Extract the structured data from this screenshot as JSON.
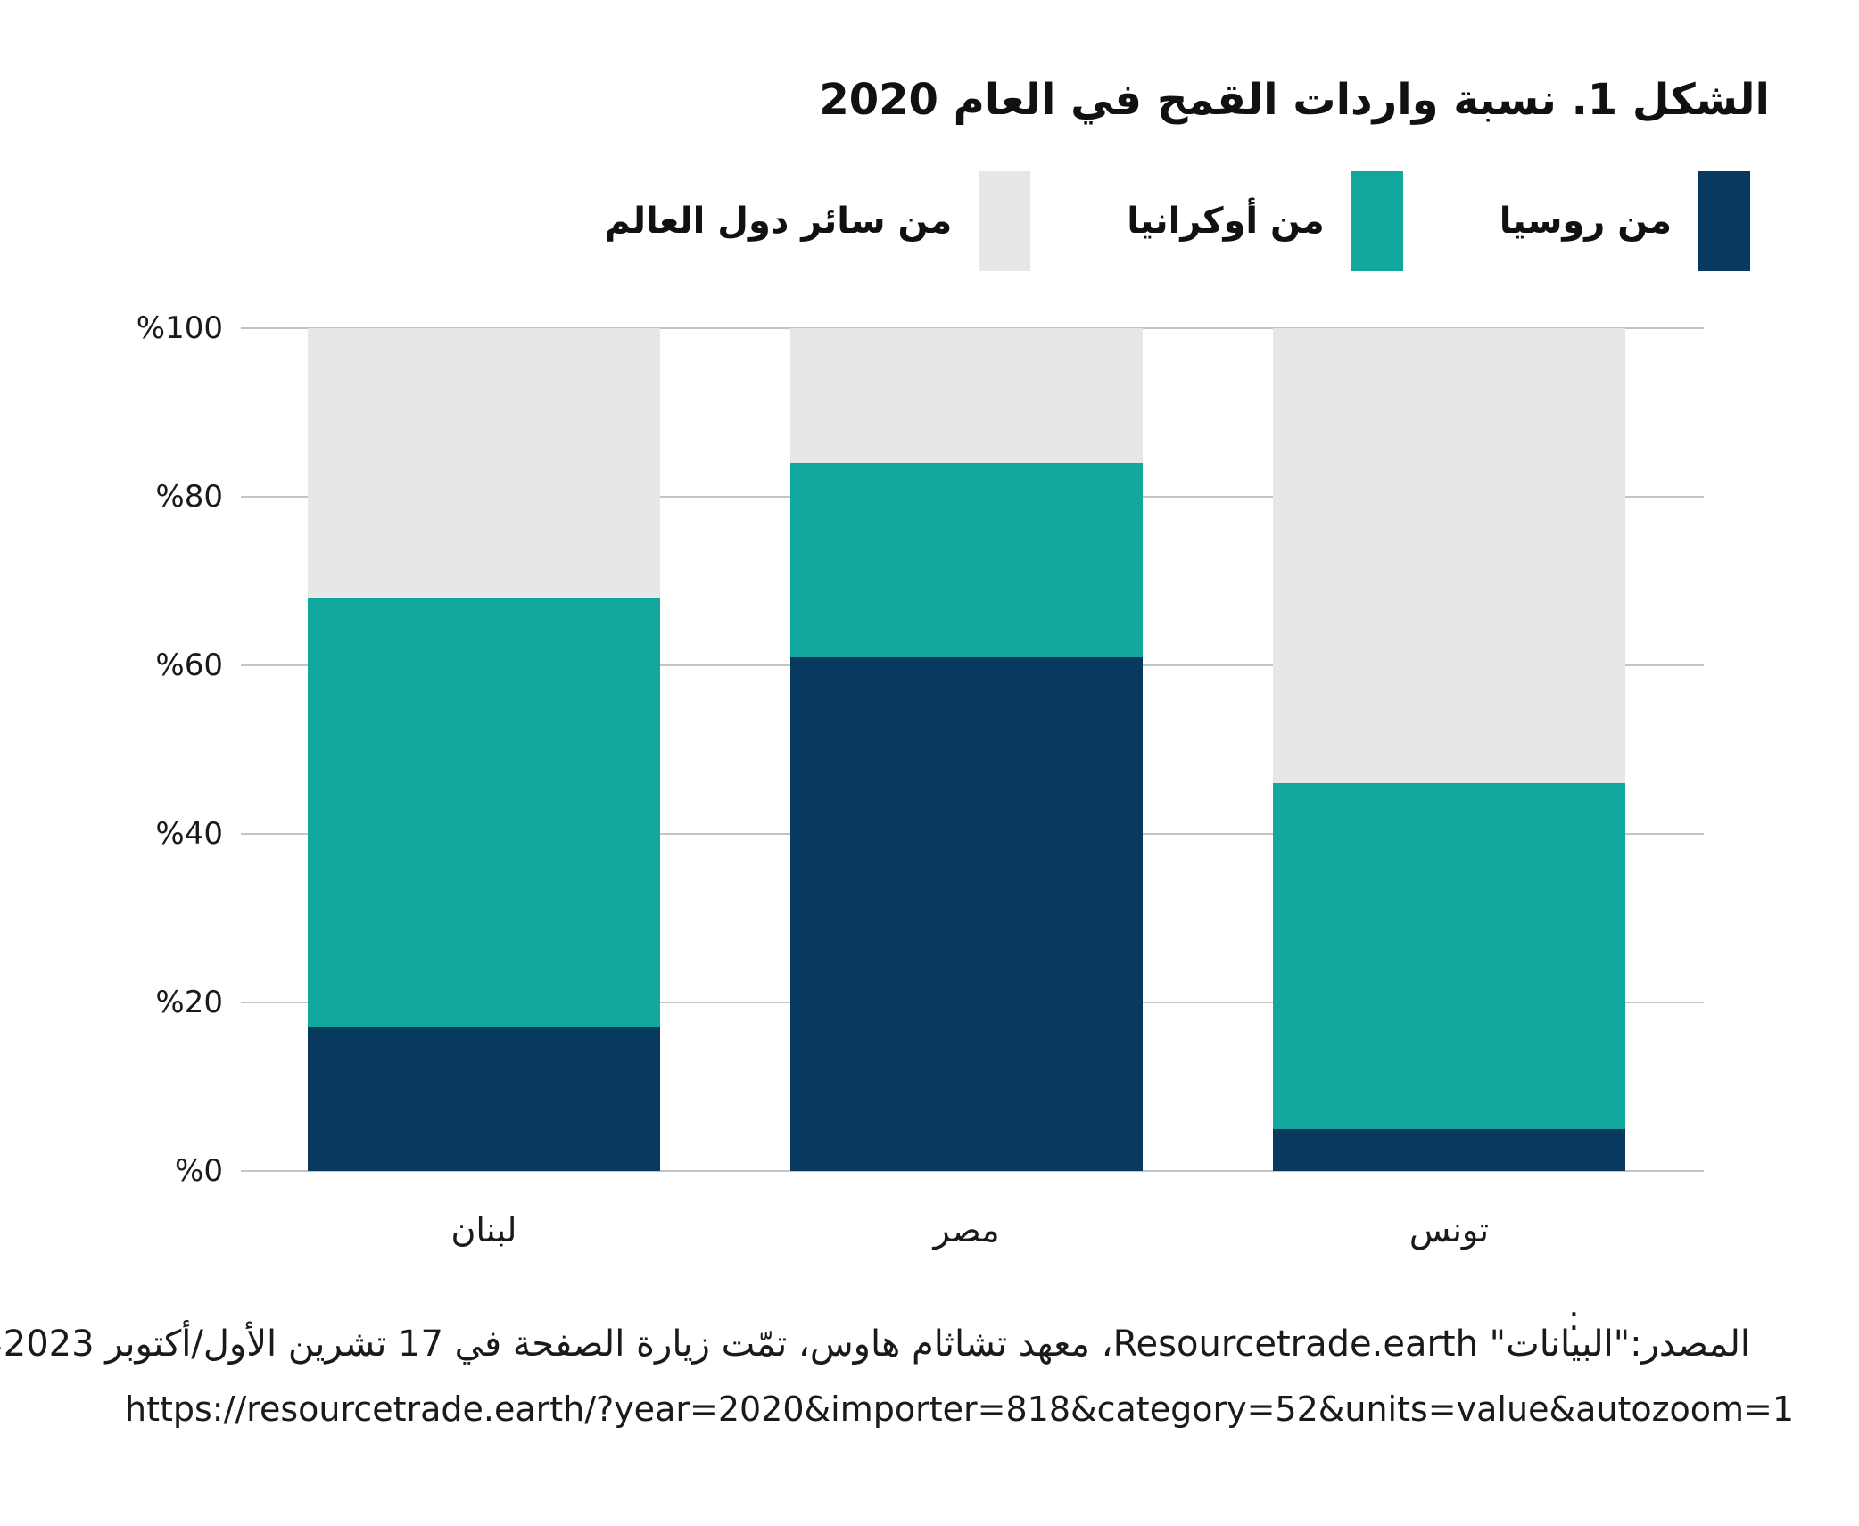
{
  "title": "الشكل 1. نسبة واردات القمح في العام 2020",
  "chart_data": {
    "type": "bar",
    "stacked": true,
    "direction": "rtl",
    "title": "الشكل 1. نسبة واردات القمح في العام 2020",
    "categories": [
      "لبنان",
      "مصر",
      "تونس"
    ],
    "series": [
      {
        "name": "من روسيا",
        "color": "#073a5e",
        "values": [
          17,
          61,
          5
        ]
      },
      {
        "name": "من أوكرانيا",
        "color": "#12a79d",
        "values": [
          51,
          23,
          41
        ]
      },
      {
        "name": "من سائر دول العالم",
        "color": "#e6e7e8",
        "values": [
          32,
          16,
          54
        ]
      }
    ],
    "ylim": [
      0,
      100
    ],
    "yticks": [
      {
        "label": "%0",
        "value": 0
      },
      {
        "label": "%20",
        "value": 20
      },
      {
        "label": "%40",
        "value": 40
      },
      {
        "label": "%60",
        "value": 60
      },
      {
        "label": "%80",
        "value": 80
      },
      {
        "label": "%100",
        "value": 100
      }
    ],
    "grid": "horizontal",
    "legend_position": "top-right"
  },
  "footer": {
    "colon_note": ":",
    "source_line": "المصدر:\"البيانات\" Resourcetrade.earth، معهد تشاثام هاوس، تمّت زيارة الصفحة في 17 تشرين الأول/أكتوبر 2023،",
    "url_line": "https://resourcetrade.earth/?year=2020&importer=818&category=52&units=value&autozoom=1"
  },
  "colors": {
    "russia": "#073a5e",
    "ukraine": "#12a79d",
    "rest_of_world": "#e6e7e8",
    "gridline": "#c4c4c4",
    "text": "#1a1a1a"
  }
}
